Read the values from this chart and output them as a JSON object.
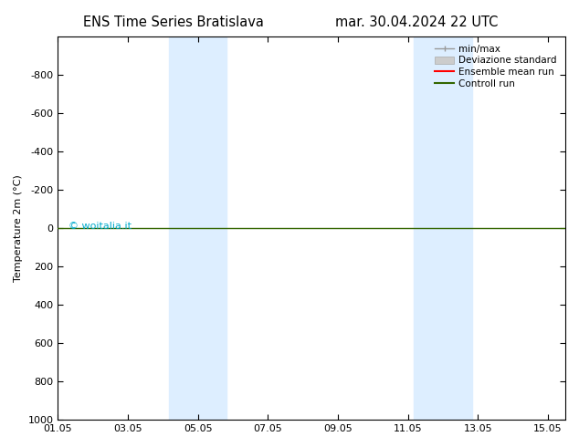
{
  "title_left": "ENS Time Series Bratislava",
  "title_right": "mar. 30.04.2024 22 UTC",
  "ylabel": "Temperature 2m (°C)",
  "ylim_min": -1000,
  "ylim_max": 1000,
  "yticks": [
    -800,
    -600,
    -400,
    -200,
    0,
    200,
    400,
    600,
    800,
    1000
  ],
  "xlim_min": 0,
  "xlim_max": 14.5,
  "xtick_positions": [
    0,
    2,
    4,
    6,
    8,
    10,
    12,
    14
  ],
  "xtick_labels": [
    "01.05",
    "03.05",
    "05.05",
    "07.05",
    "09.05",
    "11.05",
    "13.05",
    "15.05"
  ],
  "shade_bands": [
    {
      "x_start": 3.17,
      "x_end": 4.83
    },
    {
      "x_start": 10.17,
      "x_end": 11.83
    }
  ],
  "shade_color": "#ddeeff",
  "control_run_y": 0,
  "control_run_color": "#336600",
  "ensemble_mean_color": "#ff0000",
  "min_max_color": "#999999",
  "dev_std_color": "#cccccc",
  "watermark": "© woitalia.it",
  "watermark_color": "#00aacc",
  "background_color": "#ffffff",
  "legend_items": [
    "min/max",
    "Deviazione standard",
    "Ensemble mean run",
    "Controll run"
  ],
  "legend_colors": [
    "#999999",
    "#cccccc",
    "#ff0000",
    "#336600"
  ]
}
